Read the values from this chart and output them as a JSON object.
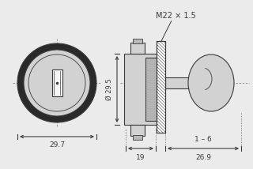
{
  "bg_color": "#ebebeb",
  "line_color": "#3a3a3a",
  "fill_light": "#d2d2d2",
  "fill_medium": "#b8b8b8",
  "fill_dark": "#888888",
  "fill_white": "#f5f5f5",
  "fill_black": "#2a2a2a",
  "dim_29_7": "29.7",
  "dim_29_5": "Ø 29.5",
  "dim_M22": "M22 × 1.5",
  "dim_19": "19",
  "dim_26_9": "26.9",
  "dim_1_6": "1 – 6"
}
